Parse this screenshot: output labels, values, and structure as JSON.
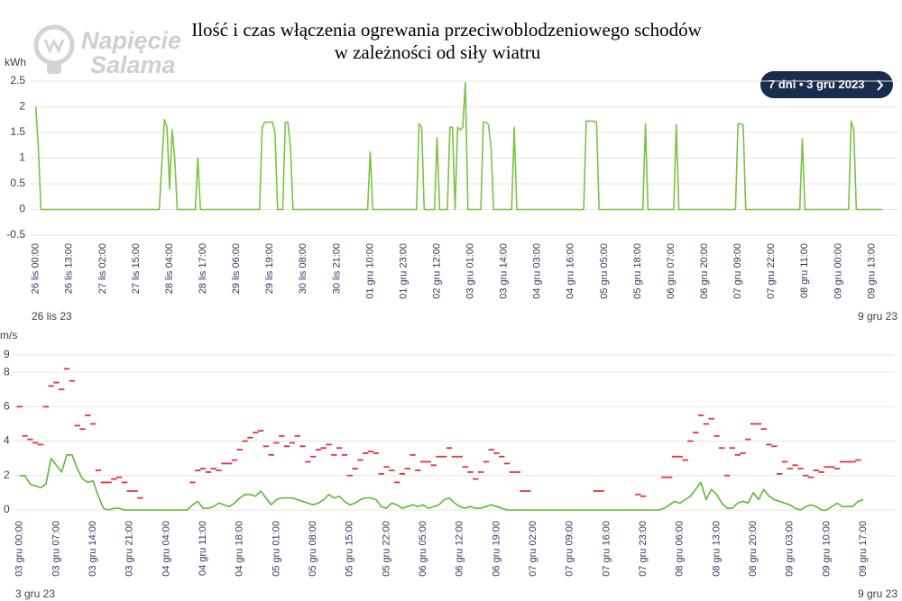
{
  "title": [
    "Ilość i czas włączenia ogrewania przeciwoblodzeniowego schodów",
    "w zależności od siły wiatru"
  ],
  "logo": [
    "Napięcie",
    "Salama"
  ],
  "range_button": "7 dni • 3 gru 2023",
  "chart_data": [
    {
      "type": "line",
      "y_label": "kWh",
      "grid": true,
      "range_labels": [
        "26 lis 23",
        "9 gru 23"
      ],
      "xlim": [
        "2023-11-25T22:00",
        "2023-12-09T23:00"
      ],
      "xticks": [
        {
          "value": "2023-11-26T00:00",
          "label": "26 lis 00:00"
        },
        {
          "value": "2023-11-26T13:00",
          "label": "26 lis 13:00"
        },
        {
          "value": "2023-11-27T02:00",
          "label": "27 lis 02:00"
        },
        {
          "value": "2023-11-27T15:00",
          "label": "27 lis 15:00"
        },
        {
          "value": "2023-11-28T04:00",
          "label": "28 lis 04:00"
        },
        {
          "value": "2023-11-28T17:00",
          "label": "28 lis 17:00"
        },
        {
          "value": "2023-11-29T06:00",
          "label": "29 lis 06:00"
        },
        {
          "value": "2023-11-29T19:00",
          "label": "29 lis 19:00"
        },
        {
          "value": "2023-11-30T08:00",
          "label": "30 lis 08:00"
        },
        {
          "value": "2023-11-30T21:00",
          "label": "30 lis 21:00"
        },
        {
          "value": "2023-12-01T10:00",
          "label": "01 gru 10:00"
        },
        {
          "value": "2023-12-01T23:00",
          "label": "01 gru 23:00"
        },
        {
          "value": "2023-12-02T12:00",
          "label": "02 gru 12:00"
        },
        {
          "value": "2023-12-03T01:00",
          "label": "03 gru 01:00"
        },
        {
          "value": "2023-12-03T14:00",
          "label": "03 gru 14:00"
        },
        {
          "value": "2023-12-04T03:00",
          "label": "04 gru 03:00"
        },
        {
          "value": "2023-12-04T16:00",
          "label": "04 gru 16:00"
        },
        {
          "value": "2023-12-05T05:00",
          "label": "05 gru 05:00"
        },
        {
          "value": "2023-12-05T18:00",
          "label": "05 gru 18:00"
        },
        {
          "value": "2023-12-06T07:00",
          "label": "06 gru 07:00"
        },
        {
          "value": "2023-12-06T20:00",
          "label": "06 gru 20:00"
        },
        {
          "value": "2023-12-07T09:00",
          "label": "07 gru 09:00"
        },
        {
          "value": "2023-12-07T22:00",
          "label": "07 gru 22:00"
        },
        {
          "value": "2023-12-08T11:00",
          "label": "08 gru 11:00"
        },
        {
          "value": "2023-12-09T00:00",
          "label": "09 gru 00:00"
        },
        {
          "value": "2023-12-09T13:00",
          "label": "09 gru 13:00"
        }
      ],
      "ylim": [
        -0.5,
        2.5
      ],
      "yticks": [
        -0.5,
        0,
        0.5,
        1,
        1.5,
        2,
        2.5
      ],
      "x": [
        "2023-11-26T00:00",
        "2023-11-26T01:00",
        "2023-11-26T02:00",
        "2023-11-28T00:00",
        "2023-11-28T01:00",
        "2023-11-28T02:00",
        "2023-11-28T03:00",
        "2023-11-28T04:00",
        "2023-11-28T05:00",
        "2023-11-28T06:00",
        "2023-11-28T07:00",
        "2023-11-28T14:00",
        "2023-11-28T15:00",
        "2023-11-28T16:00",
        "2023-11-29T15:00",
        "2023-11-29T16:00",
        "2023-11-29T17:00",
        "2023-11-29T18:00",
        "2023-11-29T19:00",
        "2023-11-29T20:00",
        "2023-11-29T21:00",
        "2023-11-29T22:00",
        "2023-11-30T00:00",
        "2023-11-30T01:00",
        "2023-11-30T02:00",
        "2023-11-30T03:00",
        "2023-11-30T04:00",
        "2023-12-01T09:00",
        "2023-12-01T10:00",
        "2023-12-01T11:00",
        "2023-12-02T04:00",
        "2023-12-02T05:00",
        "2023-12-02T06:00",
        "2023-12-02T07:00",
        "2023-12-02T11:00",
        "2023-12-02T12:00",
        "2023-12-02T13:00",
        "2023-12-02T16:00",
        "2023-12-02T17:00",
        "2023-12-02T18:00",
        "2023-12-02T19:00",
        "2023-12-02T20:00",
        "2023-12-02T21:00",
        "2023-12-02T22:00",
        "2023-12-02T23:00",
        "2023-12-03T00:00",
        "2023-12-03T05:00",
        "2023-12-03T06:00",
        "2023-12-03T07:00",
        "2023-12-03T08:00",
        "2023-12-03T09:00",
        "2023-12-03T10:00",
        "2023-12-03T17:00",
        "2023-12-03T18:00",
        "2023-12-03T19:00",
        "2023-12-04T21:00",
        "2023-12-04T22:00",
        "2023-12-04T23:00",
        "2023-12-05T00:00",
        "2023-12-05T01:00",
        "2023-12-05T02:00",
        "2023-12-05T03:00",
        "2023-12-05T20:00",
        "2023-12-05T21:00",
        "2023-12-05T22:00",
        "2023-12-06T08:00",
        "2023-12-06T09:00",
        "2023-12-06T10:00",
        "2023-12-07T08:00",
        "2023-12-07T09:00",
        "2023-12-07T10:00",
        "2023-12-07T11:00",
        "2023-12-07T12:00",
        "2023-12-08T09:00",
        "2023-12-08T10:00",
        "2023-12-08T11:00",
        "2023-12-09T04:00",
        "2023-12-09T05:00",
        "2023-12-09T06:00",
        "2023-12-09T07:00",
        "2023-12-09T17:00"
      ],
      "series": [
        {
          "color": "#7dc242",
          "values": [
            2,
            1.2,
            0,
            0,
            0.9,
            1.75,
            1.6,
            0.4,
            1.55,
            1,
            0,
            0,
            1,
            0,
            0,
            1.6,
            1.7,
            1.7,
            1.7,
            1.7,
            1.5,
            0,
            0,
            1.7,
            1.7,
            1.2,
            0,
            0,
            1.12,
            0,
            0,
            1.67,
            1.6,
            0,
            0,
            1.4,
            0,
            0,
            1.6,
            1.6,
            0,
            1.6,
            1.55,
            1.6,
            2.47,
            0,
            0,
            1.7,
            1.7,
            1.65,
            1.2,
            0,
            0,
            1.6,
            0,
            0,
            1.72,
            1.72,
            1.72,
            1.72,
            1.7,
            0,
            0,
            1.67,
            0,
            0,
            1.65,
            0,
            0,
            1.67,
            1.67,
            1.65,
            0,
            0,
            1.38,
            0,
            0,
            1.72,
            1.55,
            0,
            0
          ]
        }
      ]
    },
    {
      "type": "line",
      "y_label": "m/s",
      "grid": true,
      "range_labels": [
        "3 gru 23",
        "9 gru 23"
      ],
      "xlim": [
        "2023-12-02T23:00",
        "2023-12-09T23:00"
      ],
      "xticks": [
        {
          "value": "2023-12-03T00:00",
          "label": "03 gru 00:00"
        },
        {
          "value": "2023-12-03T07:00",
          "label": "03 gru 07:00"
        },
        {
          "value": "2023-12-03T14:00",
          "label": "03 gru 14:00"
        },
        {
          "value": "2023-12-03T21:00",
          "label": "03 gru 21:00"
        },
        {
          "value": "2023-12-04T04:00",
          "label": "04 gru 04:00"
        },
        {
          "value": "2023-12-04T11:00",
          "label": "04 gru 11:00"
        },
        {
          "value": "2023-12-04T18:00",
          "label": "04 gru 18:00"
        },
        {
          "value": "2023-12-05T01:00",
          "label": "05 gru 01:00"
        },
        {
          "value": "2023-12-05T08:00",
          "label": "05 gru 08:00"
        },
        {
          "value": "2023-12-05T15:00",
          "label": "05 gru 15:00"
        },
        {
          "value": "2023-12-05T22:00",
          "label": "05 gru 22:00"
        },
        {
          "value": "2023-12-06T05:00",
          "label": "06 gru 05:00"
        },
        {
          "value": "2023-12-06T12:00",
          "label": "06 gru 12:00"
        },
        {
          "value": "2023-12-06T19:00",
          "label": "06 gru 19:00"
        },
        {
          "value": "2023-12-07T02:00",
          "label": "07 gru 02:00"
        },
        {
          "value": "2023-12-07T09:00",
          "label": "07 gru 09:00"
        },
        {
          "value": "2023-12-07T16:00",
          "label": "07 gru 16:00"
        },
        {
          "value": "2023-12-07T23:00",
          "label": "07 gru 23:00"
        },
        {
          "value": "2023-12-08T06:00",
          "label": "08 gru 06:00"
        },
        {
          "value": "2023-12-08T13:00",
          "label": "08 gru 13:00"
        },
        {
          "value": "2023-12-08T20:00",
          "label": "08 gru 20:00"
        },
        {
          "value": "2023-12-09T03:00",
          "label": "09 gru 03:00"
        },
        {
          "value": "2023-12-09T10:00",
          "label": "09 gru 10:00"
        },
        {
          "value": "2023-12-09T17:00",
          "label": "09 gru 17:00"
        }
      ],
      "ylim": [
        0,
        9
      ],
      "yticks": [
        0,
        2,
        4,
        6,
        8,
        9
      ],
      "x": [
        "2023-12-03T00:00",
        "2023-12-03T01:00",
        "2023-12-03T02:00",
        "2023-12-03T03:00",
        "2023-12-03T04:00",
        "2023-12-03T05:00",
        "2023-12-03T06:00",
        "2023-12-03T07:00",
        "2023-12-03T08:00",
        "2023-12-03T09:00",
        "2023-12-03T10:00",
        "2023-12-03T11:00",
        "2023-12-03T12:00",
        "2023-12-03T13:00",
        "2023-12-03T14:00",
        "2023-12-03T15:00",
        "2023-12-03T16:00",
        "2023-12-03T17:00",
        "2023-12-03T18:00",
        "2023-12-03T19:00",
        "2023-12-03T20:00",
        "2023-12-03T21:00",
        "2023-12-03T22:00",
        "2023-12-03T23:00",
        "2023-12-04T00:00",
        "2023-12-04T01:00",
        "2023-12-04T02:00",
        "2023-12-04T03:00",
        "2023-12-04T04:00",
        "2023-12-04T05:00",
        "2023-12-04T06:00",
        "2023-12-04T07:00",
        "2023-12-04T08:00",
        "2023-12-04T09:00",
        "2023-12-04T10:00",
        "2023-12-04T11:00",
        "2023-12-04T12:00",
        "2023-12-04T13:00",
        "2023-12-04T14:00",
        "2023-12-04T15:00",
        "2023-12-04T16:00",
        "2023-12-04T17:00",
        "2023-12-04T18:00",
        "2023-12-04T19:00",
        "2023-12-04T20:00",
        "2023-12-04T21:00",
        "2023-12-04T22:00",
        "2023-12-04T23:00",
        "2023-12-05T00:00",
        "2023-12-05T01:00",
        "2023-12-05T02:00",
        "2023-12-05T03:00",
        "2023-12-05T04:00",
        "2023-12-05T05:00",
        "2023-12-05T06:00",
        "2023-12-05T07:00",
        "2023-12-05T08:00",
        "2023-12-05T09:00",
        "2023-12-05T10:00",
        "2023-12-05T11:00",
        "2023-12-05T12:00",
        "2023-12-05T13:00",
        "2023-12-05T14:00",
        "2023-12-05T15:00",
        "2023-12-05T16:00",
        "2023-12-05T17:00",
        "2023-12-05T18:00",
        "2023-12-05T19:00",
        "2023-12-05T20:00",
        "2023-12-05T21:00",
        "2023-12-05T22:00",
        "2023-12-05T23:00",
        "2023-12-06T00:00",
        "2023-12-06T01:00",
        "2023-12-06T02:00",
        "2023-12-06T03:00",
        "2023-12-06T04:00",
        "2023-12-06T05:00",
        "2023-12-06T06:00",
        "2023-12-06T07:00",
        "2023-12-06T08:00",
        "2023-12-06T09:00",
        "2023-12-06T10:00",
        "2023-12-06T11:00",
        "2023-12-06T12:00",
        "2023-12-06T13:00",
        "2023-12-06T14:00",
        "2023-12-06T15:00",
        "2023-12-06T16:00",
        "2023-12-06T17:00",
        "2023-12-06T18:00",
        "2023-12-06T19:00",
        "2023-12-06T20:00",
        "2023-12-06T21:00",
        "2023-12-06T22:00",
        "2023-12-06T23:00",
        "2023-12-07T00:00",
        "2023-12-07T01:00",
        "2023-12-07T02:00",
        "2023-12-07T03:00",
        "2023-12-07T04:00",
        "2023-12-07T05:00",
        "2023-12-07T06:00",
        "2023-12-07T07:00",
        "2023-12-07T08:00",
        "2023-12-07T09:00",
        "2023-12-07T10:00",
        "2023-12-07T11:00",
        "2023-12-07T12:00",
        "2023-12-07T13:00",
        "2023-12-07T14:00",
        "2023-12-07T15:00",
        "2023-12-07T16:00",
        "2023-12-07T17:00",
        "2023-12-07T18:00",
        "2023-12-07T19:00",
        "2023-12-07T20:00",
        "2023-12-07T21:00",
        "2023-12-07T22:00",
        "2023-12-07T23:00",
        "2023-12-08T00:00",
        "2023-12-08T01:00",
        "2023-12-08T02:00",
        "2023-12-08T03:00",
        "2023-12-08T04:00",
        "2023-12-08T05:00",
        "2023-12-08T06:00",
        "2023-12-08T07:00",
        "2023-12-08T08:00",
        "2023-12-08T09:00",
        "2023-12-08T10:00",
        "2023-12-08T11:00",
        "2023-12-08T12:00",
        "2023-12-08T13:00",
        "2023-12-08T14:00",
        "2023-12-08T15:00",
        "2023-12-08T16:00",
        "2023-12-08T17:00",
        "2023-12-08T18:00",
        "2023-12-08T19:00",
        "2023-12-08T20:00",
        "2023-12-08T21:00",
        "2023-12-08T22:00",
        "2023-12-08T23:00",
        "2023-12-09T00:00",
        "2023-12-09T01:00",
        "2023-12-09T02:00",
        "2023-12-09T03:00",
        "2023-12-09T04:00",
        "2023-12-09T05:00",
        "2023-12-09T06:00",
        "2023-12-09T07:00",
        "2023-12-09T08:00",
        "2023-12-09T09:00",
        "2023-12-09T10:00",
        "2023-12-09T11:00",
        "2023-12-09T12:00",
        "2023-12-09T13:00",
        "2023-12-09T14:00",
        "2023-12-09T15:00",
        "2023-12-09T16:00",
        "2023-12-09T17:00"
      ],
      "series": [
        {
          "color": "#e8313f",
          "style": "dash",
          "values": [
            6.0,
            4.3,
            4.1,
            3.9,
            3.8,
            6.0,
            7.2,
            7.4,
            7.0,
            8.2,
            7.5,
            4.9,
            4.7,
            5.5,
            5.0,
            2.3,
            1.6,
            1.6,
            1.8,
            1.9,
            1.6,
            1.1,
            1.1,
            0.7,
            null,
            null,
            null,
            null,
            null,
            null,
            null,
            null,
            null,
            1.6,
            2.3,
            2.4,
            2.2,
            2.4,
            2.3,
            2.7,
            2.7,
            2.9,
            3.5,
            4.0,
            4.2,
            4.5,
            4.6,
            3.7,
            3.2,
            3.9,
            4.3,
            3.7,
            3.9,
            4.3,
            3.7,
            2.8,
            3.1,
            3.5,
            3.6,
            3.8,
            3.2,
            3.6,
            3.2,
            2.0,
            2.4,
            2.9,
            3.3,
            3.4,
            3.3,
            2.1,
            2.5,
            2.3,
            1.6,
            2.1,
            2.4,
            3.2,
            2.3,
            2.8,
            2.8,
            2.6,
            3.1,
            3.1,
            3.6,
            3.1,
            3.1,
            2.5,
            2.2,
            1.8,
            2.2,
            2.8,
            3.5,
            3.3,
            3.1,
            2.7,
            2.2,
            2.2,
            1.1,
            1.1,
            null,
            null,
            null,
            null,
            null,
            null,
            null,
            null,
            null,
            null,
            null,
            null,
            1.1,
            1.1,
            null,
            null,
            null,
            null,
            null,
            null,
            0.9,
            0.8,
            null,
            null,
            null,
            1.9,
            1.9,
            3.1,
            3.1,
            2.9,
            4.0,
            4.5,
            5.5,
            5.0,
            5.3,
            4.3,
            3.6,
            2.0,
            3.6,
            3.2,
            3.3,
            4.1,
            5.0,
            5.0,
            4.7,
            3.8,
            3.7,
            2.1,
            2.8,
            2.4,
            2.6,
            2.4,
            2.0,
            1.9,
            2.3,
            2.2,
            2.5,
            2.5,
            2.4,
            2.8,
            2.8,
            2.8,
            2.9,
            null
          ]
        },
        {
          "color": "#5cb83a",
          "values": [
            2.0,
            2.0,
            1.5,
            1.4,
            1.3,
            1.5,
            3.0,
            2.6,
            2.2,
            3.2,
            3.2,
            2.4,
            1.8,
            1.6,
            1.7,
            0.8,
            0.1,
            0,
            0.1,
            0.1,
            0,
            0,
            0,
            0,
            0,
            0,
            0,
            0,
            0,
            0,
            0,
            0,
            0,
            0.3,
            0.5,
            0.1,
            0.1,
            0.2,
            0.4,
            0.3,
            0.2,
            0.4,
            0.7,
            0.9,
            0.9,
            0.8,
            1.1,
            0.7,
            0.3,
            0.6,
            0.7,
            0.7,
            0.7,
            0.6,
            0.5,
            0.4,
            0.3,
            0.4,
            0.6,
            0.9,
            0.7,
            0.8,
            0.5,
            0.3,
            0.4,
            0.6,
            0.7,
            0.7,
            0.6,
            0.2,
            0.1,
            0.4,
            0.3,
            0.1,
            0.2,
            0.3,
            0.2,
            0.3,
            0.1,
            0.2,
            0.3,
            0.6,
            0.7,
            0.4,
            0.2,
            0.1,
            0.2,
            0.1,
            0.1,
            0.2,
            0.3,
            0.2,
            0.1,
            0,
            0,
            0,
            0,
            0,
            0,
            0,
            0,
            0,
            0,
            0,
            0,
            0,
            0,
            0,
            0,
            0,
            0,
            0,
            0,
            0,
            0,
            0,
            0,
            0,
            0,
            0,
            0,
            0,
            0,
            0.1,
            0.3,
            0.5,
            0.4,
            0.6,
            0.8,
            1.2,
            1.6,
            0.6,
            1.2,
            0.9,
            0.4,
            0.1,
            0.1,
            0.4,
            0.5,
            0.4,
            1.0,
            0.6,
            1.2,
            0.8,
            0.6,
            0.5,
            0.4,
            0.3,
            0.1,
            0,
            0.2,
            0.3,
            0.2,
            0,
            0,
            0.2,
            0.4,
            0.2,
            0.2,
            0.2,
            0.5,
            0.6
          ]
        }
      ]
    }
  ]
}
